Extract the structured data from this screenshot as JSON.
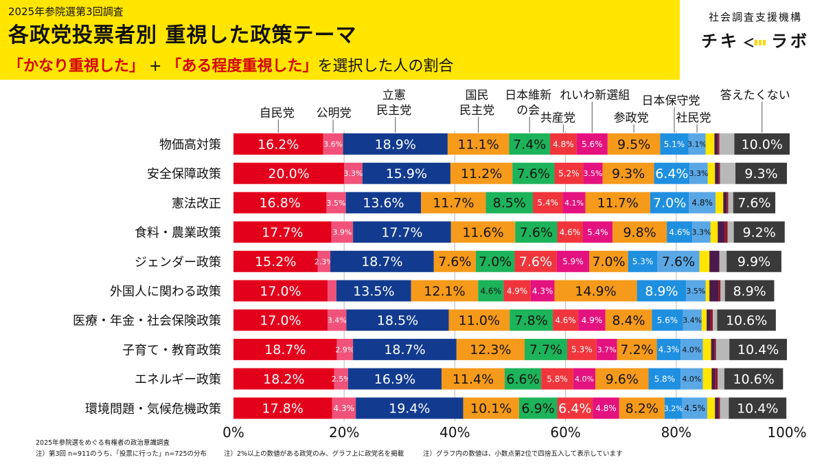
{
  "header": {
    "kicker": "2025年参院選第3回調査",
    "title": "各政党投票者別 重視した政策テーマ",
    "subtitle_a": "「かなり重視した」",
    "subtitle_plus": " + ",
    "subtitle_b": "「ある程度重視した」",
    "subtitle_rest": "を選択した人の割合"
  },
  "brand": {
    "org": "社会調査支援機構",
    "logo_left": "チキ",
    "logo_right": "ラボ"
  },
  "footer": {
    "line1": "2025年参院選をめぐる有権者の政治意識調査",
    "line2": "注）第3回 n=911のうち、「投票に行った」n=725の分布",
    "note1": "注）2%以上の数値がある政党のみ、グラフ上に政党名を掲載",
    "note2": "注）グラフ内の数値は、小数点第2位で四捨五入して表示しています"
  },
  "chart_data": {
    "type": "bar",
    "orientation": "horizontal-stacked-100",
    "xlim": [
      0,
      100
    ],
    "x_ticks": [
      "0%",
      "20%",
      "40%",
      "60%",
      "80%",
      "100%"
    ],
    "categories": [
      "物価高対策",
      "安全保障政策",
      "憲法改正",
      "食料・農業政策",
      "ジェンダー政策",
      "外国人に関わる政策",
      "医療・年金・社会保険政策",
      "子育て・教育政策",
      "エネルギー政策",
      "環境問題・気候危機政策"
    ],
    "series": [
      {
        "name": "自民党",
        "legend_label": "自民党",
        "color": "#e3001b",
        "values": [
          16.2,
          20.0,
          16.8,
          17.7,
          15.2,
          17.0,
          17.0,
          18.7,
          18.2,
          17.8
        ]
      },
      {
        "name": "公明党",
        "legend_label": "公明党",
        "color": "#f0527a",
        "values": [
          3.6,
          3.3,
          3.5,
          3.9,
          2.3,
          1.6,
          3.4,
          2.9,
          2.5,
          4.3
        ]
      },
      {
        "name": "立憲民主党",
        "legend_label": "立憲\n民主党",
        "color": "#123b8f",
        "values": [
          18.9,
          15.9,
          13.6,
          17.7,
          18.7,
          13.5,
          18.5,
          18.7,
          16.9,
          19.4
        ]
      },
      {
        "name": "国民民主党",
        "legend_label": "国民\n民主党",
        "color": "#f59a1b",
        "values": [
          11.1,
          11.2,
          11.7,
          11.6,
          7.6,
          12.1,
          11.0,
          12.3,
          11.4,
          10.1
        ]
      },
      {
        "name": "日本維新の会",
        "legend_label": "日本維新\nの会",
        "color": "#1db35a",
        "values": [
          7.4,
          7.6,
          8.5,
          7.6,
          7.0,
          4.6,
          7.8,
          7.7,
          6.6,
          6.9
        ]
      },
      {
        "name": "共産党",
        "legend_label": "共産党",
        "color": "#f0363c",
        "values": [
          4.8,
          5.2,
          5.4,
          4.6,
          7.6,
          4.9,
          4.6,
          5.3,
          5.8,
          6.4
        ]
      },
      {
        "name": "れいわ新選組",
        "legend_label": "れいわ新選組",
        "color": "#e4127f",
        "values": [
          5.6,
          3.5,
          4.1,
          5.4,
          5.9,
          4.3,
          4.9,
          3.7,
          4.0,
          4.8
        ]
      },
      {
        "name": "参政党",
        "legend_label": "参政党",
        "color": "#f59a1b",
        "values": [
          9.5,
          9.3,
          11.7,
          9.8,
          7.0,
          14.9,
          8.4,
          7.2,
          9.6,
          8.2
        ]
      },
      {
        "name": "日本保守党",
        "legend_label": "日本保守党",
        "color": "#1f8fe0",
        "values": [
          5.1,
          6.4,
          7.0,
          4.6,
          5.3,
          8.9,
          5.6,
          4.3,
          5.8,
          3.2
        ]
      },
      {
        "name": "社民党",
        "legend_label": "社民党",
        "color": "#5aa7e6",
        "values": [
          3.1,
          3.3,
          4.8,
          3.3,
          7.6,
          3.5,
          3.4,
          4.0,
          4.0,
          4.5
        ]
      },
      {
        "name": "",
        "color": "#ffe500",
        "values": [
          1.6,
          1.3,
          1.4,
          1.3,
          1.8,
          0.7,
          0.9,
          1.5,
          1.6,
          1.4
        ]
      },
      {
        "name": "",
        "color": "#4a1a4a",
        "values": [
          0.6,
          0.6,
          0.6,
          1.2,
          1.8,
          1.6,
          0.6,
          0.6,
          0.6,
          0.6
        ]
      },
      {
        "name": "",
        "color": "#8b1a2b",
        "values": [
          0.3,
          0.3,
          0.3,
          0.6,
          0.0,
          0.4,
          0.5,
          0.3,
          0.5,
          0.3
        ]
      },
      {
        "name": "",
        "color": "#b8b8b8",
        "values": [
          2.7,
          2.8,
          0.9,
          1.1,
          1.3,
          0.8,
          0.8,
          2.4,
          1.2,
          1.6
        ]
      },
      {
        "name": "答えたくない",
        "legend_label": "答えたくない",
        "color": "#3a3a3a",
        "values": [
          10.0,
          9.3,
          7.6,
          9.2,
          9.9,
          8.9,
          10.6,
          10.4,
          10.6,
          10.4
        ]
      }
    ],
    "labels": [
      [
        "16.2%",
        "3.6%",
        "18.9%",
        "11.1%",
        "7.4%",
        "4.8%",
        "5.6%",
        "9.5%",
        "5.1%",
        "3.1%",
        "",
        "",
        "",
        "",
        "10.0%"
      ],
      [
        "20.0%",
        "3.3%",
        "15.9%",
        "11.2%",
        "7.6%",
        "5.2%",
        "3.5%",
        "9.3%",
        "6.4%",
        "3.3%",
        "",
        "",
        "",
        "",
        "9.3%"
      ],
      [
        "16.8%",
        "3.5%",
        "13.6%",
        "11.7%",
        "8.5%",
        "5.4%",
        "4.1%",
        "11.7%",
        "7.0%",
        "4.8%",
        "",
        "",
        "",
        "",
        "7.6%"
      ],
      [
        "17.7%",
        "3.9%",
        "17.7%",
        "11.6%",
        "7.6%",
        "4.6%",
        "5.4%",
        "9.8%",
        "4.6%",
        "3.3%",
        "",
        "",
        "",
        "",
        "9.2%"
      ],
      [
        "15.2%",
        "2.3%",
        "18.7%",
        "7.6%",
        "7.0%",
        "7.6%",
        "5.9%",
        "7.0%",
        "5.3%",
        "7.6%",
        "",
        "",
        "",
        "",
        "9.9%"
      ],
      [
        "17.0%",
        "",
        "13.5%",
        "12.1%",
        "4.6%",
        "4.9%",
        "4.3%",
        "14.9%",
        "8.9%",
        "3.5%",
        "",
        "",
        "",
        "",
        "8.9%"
      ],
      [
        "17.0%",
        "3.4%",
        "18.5%",
        "11.0%",
        "7.8%",
        "4.6%",
        "4.9%",
        "8.4%",
        "5.6%",
        "3.4%",
        "",
        "",
        "",
        "",
        "10.6%"
      ],
      [
        "18.7%",
        "2.9%",
        "18.7%",
        "12.3%",
        "7.7%",
        "5.3%",
        "3.7%",
        "7.2%",
        "4.3%",
        "4.0%",
        "",
        "",
        "",
        "",
        "10.4%"
      ],
      [
        "18.2%",
        "2.5%",
        "16.9%",
        "11.4%",
        "6.6%",
        "5.8%",
        "4.0%",
        "9.6%",
        "5.8%",
        "4.0%",
        "",
        "",
        "",
        "",
        "10.6%"
      ],
      [
        "17.8%",
        "4.3%",
        "19.4%",
        "10.1%",
        "6.9%",
        "6.4%",
        "4.8%",
        "8.2%",
        "3.2%",
        "4.5%",
        "",
        "",
        "",
        "",
        "10.4%"
      ]
    ],
    "legend": "above-bars"
  }
}
